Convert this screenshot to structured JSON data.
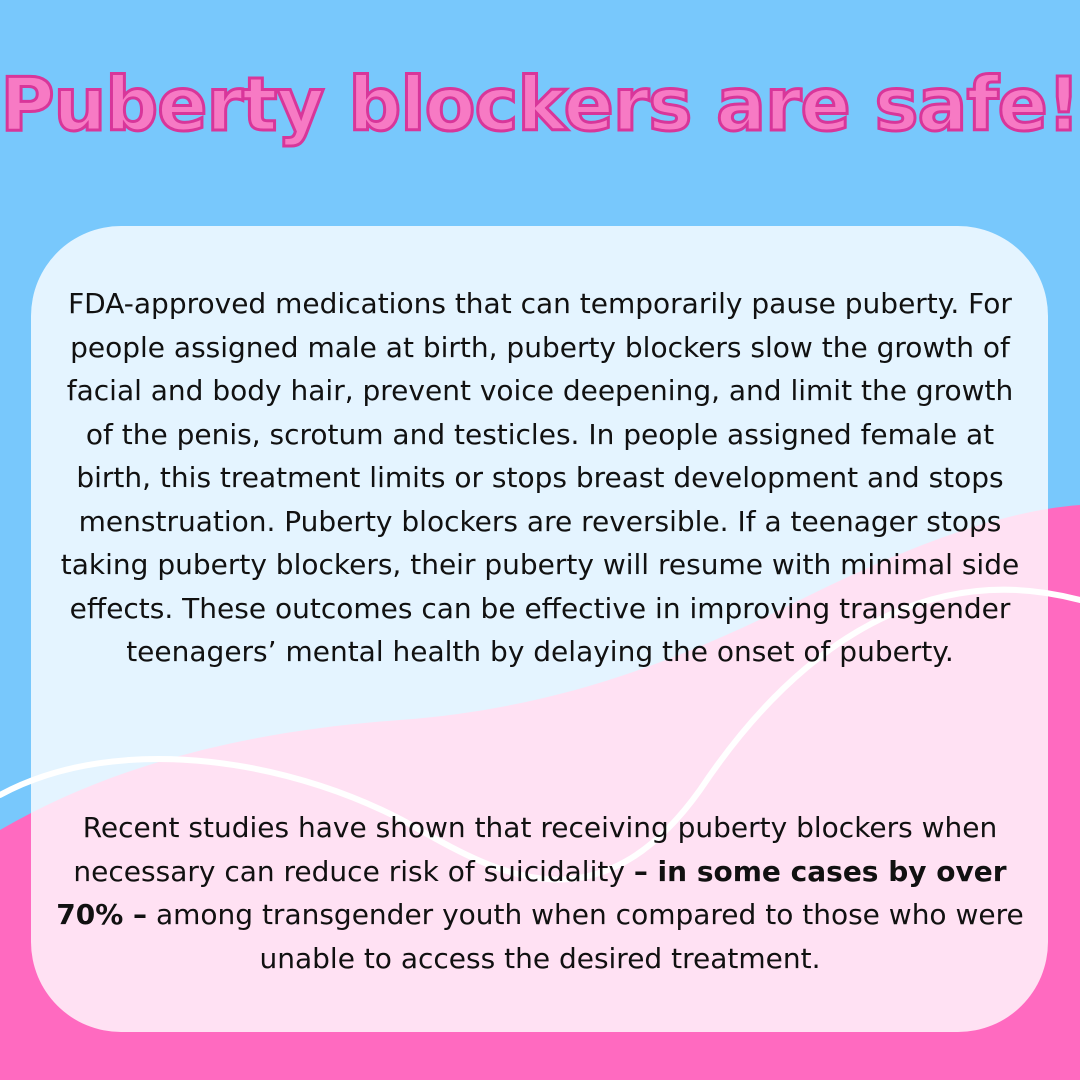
{
  "title": "Puberty blockers are safe!",
  "paragraph1": "FDA-approved medications that can temporarily pause puberty. For people assigned male at birth, puberty blockers slow the growth of facial and body hair, prevent voice deepening, and limit the growth of the penis, scrotum and testicles. In people assigned female at birth, this treatment limits or stops breast development and stops menstruation. Puberty blockers are reversible. If a teenager stops taking puberty blockers, their puberty will resume with minimal side effects. These outcomes can be effective in improving transgender teenagers’ mental health by delaying the onset of puberty.",
  "paragraph2": {
    "before": "Recent studies have shown that receiving puberty blockers when necessary can reduce risk of suicidality ",
    "bold": "– in some cases by over 70% –",
    "after": " among transgender youth when compared to those who were unable to access the desired treatment."
  },
  "colors": {
    "background_blue": "#78c8fc",
    "wave_pink": "#ff6ac0",
    "title_pink": "#f77ac4",
    "title_outline": "#d8369a",
    "card_white": "#ffffff"
  }
}
